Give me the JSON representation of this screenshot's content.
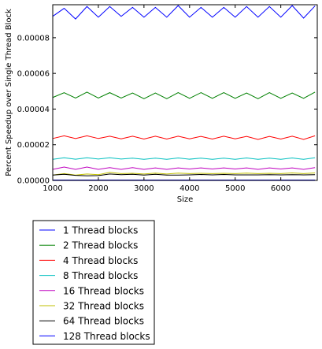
{
  "chart_data": {
    "type": "line",
    "xlabel": "Size",
    "ylabel": "Percent Speedup over Single Thread Block",
    "xlim": [
      1000,
      6800
    ],
    "ylim": [
      0,
      9.85e-05
    ],
    "x_ticks": [
      1000,
      2000,
      3000,
      4000,
      5000,
      6000
    ],
    "x_tick_labels": [
      "1000",
      "2000",
      "3000",
      "4000",
      "5000",
      "6000"
    ],
    "y_ticks": [
      0,
      2e-05,
      4e-05,
      6e-05,
      8e-05
    ],
    "y_tick_labels": [
      "0.00000",
      "0.00002",
      "0.00004",
      "0.00006",
      "0.00008"
    ],
    "grid": false,
    "legend_placement": "below",
    "x": [
      1000,
      1250,
      1500,
      1750,
      2000,
      2250,
      2500,
      2750,
      3000,
      3250,
      3500,
      3750,
      4000,
      4250,
      4500,
      4750,
      5000,
      5250,
      5500,
      5750,
      6000,
      6250,
      6500,
      6750
    ],
    "series": [
      {
        "name": "1 Thread blocks",
        "color": "#0000ff",
        "values": [
          2e-07,
          2.2e-07,
          2e-07,
          2.2e-07,
          2e-07,
          2.2e-07,
          2e-07,
          2.2e-07,
          2e-07,
          2.2e-07,
          2e-07,
          2.2e-07,
          2e-07,
          2.2e-07,
          2e-07,
          2.2e-07,
          2e-07,
          2.2e-07,
          2e-07,
          2.2e-07,
          2e-07,
          2.2e-07,
          2e-07,
          2.2e-07
        ]
      },
      {
        "name": "2 Thread blocks",
        "color": "#008000",
        "values": [
          4.65e-05,
          4.92e-05,
          4.62e-05,
          4.95e-05,
          4.62e-05,
          4.92e-05,
          4.62e-05,
          4.9e-05,
          4.58e-05,
          4.9e-05,
          4.58e-05,
          4.92e-05,
          4.6e-05,
          4.92e-05,
          4.6e-05,
          4.92e-05,
          4.6e-05,
          4.9e-05,
          4.58e-05,
          4.92e-05,
          4.6e-05,
          4.9e-05,
          4.6e-05,
          4.95e-05
        ]
      },
      {
        "name": "4 Thread blocks",
        "color": "#ff0000",
        "values": [
          2.35e-05,
          2.5e-05,
          2.35e-05,
          2.5e-05,
          2.35e-05,
          2.48e-05,
          2.33e-05,
          2.48e-05,
          2.32e-05,
          2.48e-05,
          2.32e-05,
          2.48e-05,
          2.33e-05,
          2.47e-05,
          2.32e-05,
          2.48e-05,
          2.33e-05,
          2.47e-05,
          2.3e-05,
          2.47e-05,
          2.32e-05,
          2.48e-05,
          2.3e-05,
          2.5e-05
        ]
      },
      {
        "name": "8 Thread blocks",
        "color": "#00bfbf",
        "values": [
          1.18e-05,
          1.27e-05,
          1.19e-05,
          1.27e-05,
          1.2e-05,
          1.27e-05,
          1.2e-05,
          1.25e-05,
          1.18e-05,
          1.25e-05,
          1.18e-05,
          1.26e-05,
          1.19e-05,
          1.25e-05,
          1.18e-05,
          1.25e-05,
          1.18e-05,
          1.26e-05,
          1.18e-05,
          1.25e-05,
          1.18e-05,
          1.26e-05,
          1.18e-05,
          1.27e-05
        ]
      },
      {
        "name": "16 Thread blocks",
        "color": "#bf00bf",
        "values": [
          6.2e-06,
          7.5e-06,
          6.2e-06,
          7.5e-06,
          6.2e-06,
          7.2e-06,
          6.2e-06,
          7.2e-06,
          6.2e-06,
          7e-06,
          6.2e-06,
          7e-06,
          6.4e-06,
          7e-06,
          6.4e-06,
          7e-06,
          6.4e-06,
          7e-06,
          6.2e-06,
          7e-06,
          6.4e-06,
          7e-06,
          6.2e-06,
          7.2e-06
        ]
      },
      {
        "name": "32 Thread blocks",
        "color": "#bfbf00",
        "values": [
          3e-06,
          3.8e-06,
          3e-06,
          3.6e-06,
          3.2e-06,
          4.5e-06,
          3.8e-06,
          4e-06,
          3.6e-06,
          4.1e-06,
          3.6e-06,
          4.1e-06,
          3.8e-06,
          4e-06,
          3.8e-06,
          4e-06,
          3.8e-06,
          4.1e-06,
          3.8e-06,
          4e-06,
          3.8e-06,
          4.2e-06,
          3.8e-06,
          4.2e-06
        ]
      },
      {
        "name": "64 Thread blocks",
        "color": "#000000",
        "values": [
          3e-06,
          3.4e-06,
          2.8e-06,
          2.6e-06,
          2.7e-06,
          3.6e-06,
          3.2e-06,
          3.4e-06,
          3e-06,
          3.4e-06,
          3e-06,
          3e-06,
          3.1e-06,
          3.3e-06,
          3.1e-06,
          3.3e-06,
          3.1e-06,
          3.1e-06,
          3.1e-06,
          3.2e-06,
          3.1e-06,
          3.2e-06,
          3.1e-06,
          3.2e-06
        ]
      },
      {
        "name": "128 Thread blocks",
        "color": "#0000ff",
        "values": [
          9.2e-05,
          9.65e-05,
          9.05e-05,
          9.75e-05,
          9.15e-05,
          9.75e-05,
          9.2e-05,
          9.7e-05,
          9.15e-05,
          9.7e-05,
          9.15e-05,
          9.8e-05,
          9.15e-05,
          9.7e-05,
          9.15e-05,
          9.7e-05,
          9.15e-05,
          9.75e-05,
          9.15e-05,
          9.75e-05,
          9.15e-05,
          9.8e-05,
          9.1e-05,
          9.78e-05
        ]
      }
    ]
  }
}
